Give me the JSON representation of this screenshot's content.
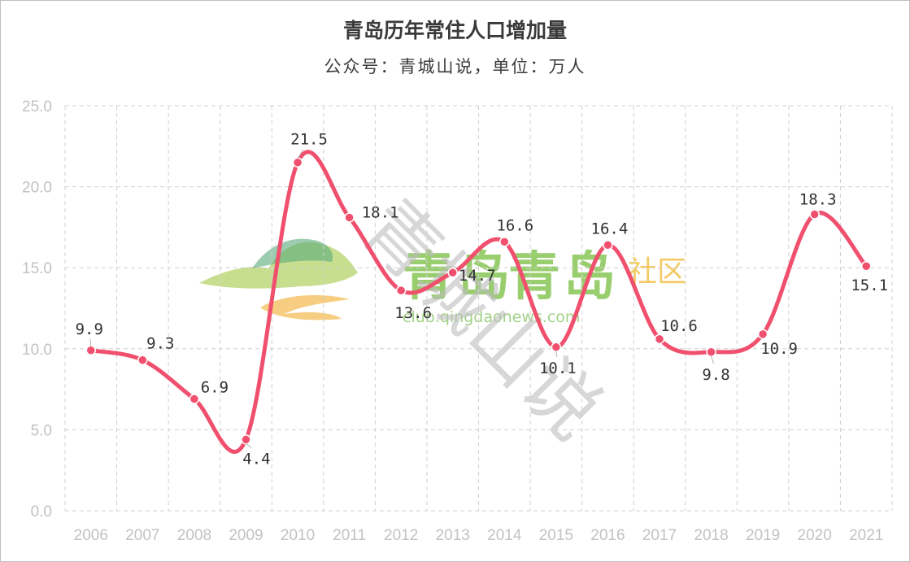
{
  "chart_data": {
    "type": "line",
    "title": "青岛历年常住人口增加量",
    "subtitle": "公众号：青城山说，单位：万人",
    "categories": [
      "2006",
      "2007",
      "2008",
      "2009",
      "2010",
      "2011",
      "2012",
      "2013",
      "2014",
      "2015",
      "2016",
      "2017",
      "2018",
      "2019",
      "2020",
      "2021"
    ],
    "values": [
      9.9,
      9.3,
      6.9,
      4.4,
      21.5,
      18.1,
      13.6,
      14.7,
      16.6,
      10.1,
      16.4,
      10.6,
      9.8,
      10.9,
      18.3,
      15.1
    ],
    "labels": [
      "9.9",
      "9.3",
      "6.9",
      "4.4",
      "21.5",
      "18.1",
      "13.6",
      "14.7",
      "16.6",
      "10.1",
      "16.4",
      "10.6",
      "9.8",
      "10.9",
      "18.3",
      "15.1"
    ],
    "y_ticks": [
      "0.0",
      "5.0",
      "10.0",
      "15.0",
      "20.0",
      "25.0"
    ],
    "ylim": [
      0,
      25
    ],
    "grid": true,
    "line_color": "#f0506e",
    "watermarks": {
      "logo_text": "青岛",
      "logo_suffix": "社区",
      "logo_url": "club.qingdaonews.com",
      "diagonal_text": "青城山说"
    }
  }
}
